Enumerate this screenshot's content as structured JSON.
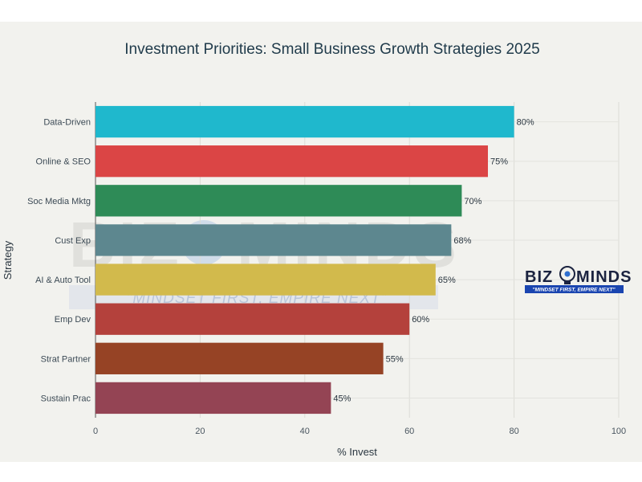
{
  "chart_data": {
    "type": "bar",
    "orientation": "horizontal",
    "title": "Investment Priorities: Small Business Growth Strategies 2025",
    "xlabel": "% Invest",
    "ylabel": "Strategy",
    "xlim": [
      0,
      100
    ],
    "xticks": [
      "0",
      "20",
      "40",
      "60",
      "80",
      "100"
    ],
    "grid": true,
    "categories": [
      "Data-Driven",
      "Online & SEO",
      "Soc Media Mktg",
      "Cust Exp",
      "AI & Auto Tool",
      "Emp Dev",
      "Strat Partner",
      "Sustain Prac"
    ],
    "values": [
      80,
      75,
      70,
      68,
      65,
      60,
      55,
      45
    ],
    "value_labels": [
      "80%",
      "75%",
      "70%",
      "68%",
      "65%",
      "60%",
      "55%",
      "45%"
    ],
    "colors": [
      "#1fb8cd",
      "#db4545",
      "#2e8b57",
      "#5d878f",
      "#d2ba4c",
      "#b4413c",
      "#964325",
      "#944454"
    ]
  },
  "watermark": {
    "left_word": "BIZ",
    "right_word": "MINDS",
    "tagline": "\"MINDSET FIRST, EMPIRE NEXT\"",
    "icon": "lightbulb-gear-icon"
  },
  "logo": {
    "left_word": "BIZ",
    "right_word": "MINDS",
    "tagline": "\"MINDSET FIRST, EMPIRE NEXT\"",
    "icon": "lightbulb-gear-icon",
    "tag_bg": "#1a45b0"
  }
}
